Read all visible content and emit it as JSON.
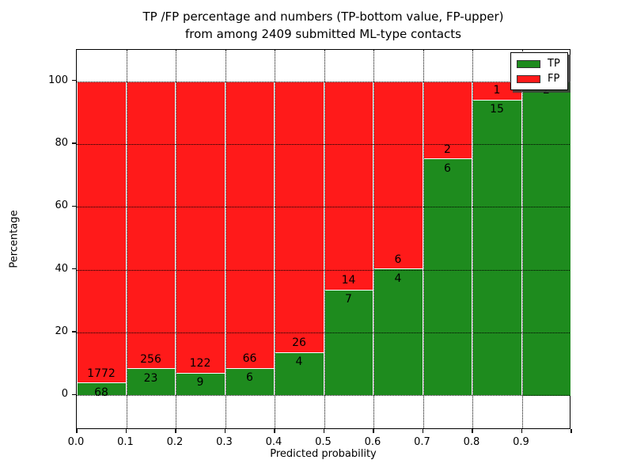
{
  "title_line1": "TP /FP percentage and numbers (TP-bottom value, FP-upper)",
  "title_line2": "from among 2409 submitted ML-type contacts",
  "total_contacts": 2409,
  "colors": {
    "tp": "#1e8b1e",
    "fp": "#ff1a1a",
    "grid": "#000000",
    "bar_edge": "#ffffff"
  },
  "legend": {
    "position": "upper right",
    "entries": [
      {
        "label": "TP",
        "color": "#1e8b1e"
      },
      {
        "label": "FP",
        "color": "#ff1a1a"
      }
    ]
  },
  "chart_data": {
    "type": "bar",
    "stacked": true,
    "note": "Each bar is a 0.1-wide predicted-probability bin normalized to 100%; green TP share on bottom, red FP share on top; labels show raw counts (TP bottom value, FP upper)",
    "categories": [
      "0.0-0.1",
      "0.1-0.2",
      "0.2-0.3",
      "0.3-0.4",
      "0.4-0.5",
      "0.5-0.6",
      "0.6-0.7",
      "0.7-0.8",
      "0.8-0.9",
      "0.9-1.0"
    ],
    "bin_edges": [
      0.0,
      0.1,
      0.2,
      0.3,
      0.4,
      0.5,
      0.6,
      0.7,
      0.8,
      0.9,
      1.0
    ],
    "series": [
      {
        "name": "TP",
        "color": "#1e8b1e",
        "counts": [
          68,
          23,
          9,
          6,
          4,
          7,
          4,
          6,
          15,
          2
        ]
      },
      {
        "name": "FP",
        "color": "#ff1a1a",
        "counts": [
          1772,
          256,
          122,
          66,
          26,
          14,
          6,
          2,
          1,
          0
        ]
      }
    ],
    "tp_percent": [
      3.7,
      8.24,
      6.87,
      8.33,
      13.33,
      33.33,
      40.0,
      75.0,
      93.75,
      100.0
    ],
    "title": "TP /FP percentage and numbers (TP-bottom value, FP-upper) from among 2409 submitted ML-type contacts",
    "xlabel": "Predicted probability",
    "ylabel": "Percentage",
    "x_tick_labels": [
      "0.0",
      "0.1",
      "0.2",
      "0.3",
      "0.4",
      "0.5",
      "0.6",
      "0.7",
      "0.8",
      "0.9"
    ],
    "y_ticks": [
      0,
      20,
      40,
      60,
      80,
      100
    ],
    "xlim": [
      0.0,
      1.0
    ],
    "ylim": [
      -11,
      110
    ],
    "grid": "dotted",
    "legend_position": "upper right"
  }
}
